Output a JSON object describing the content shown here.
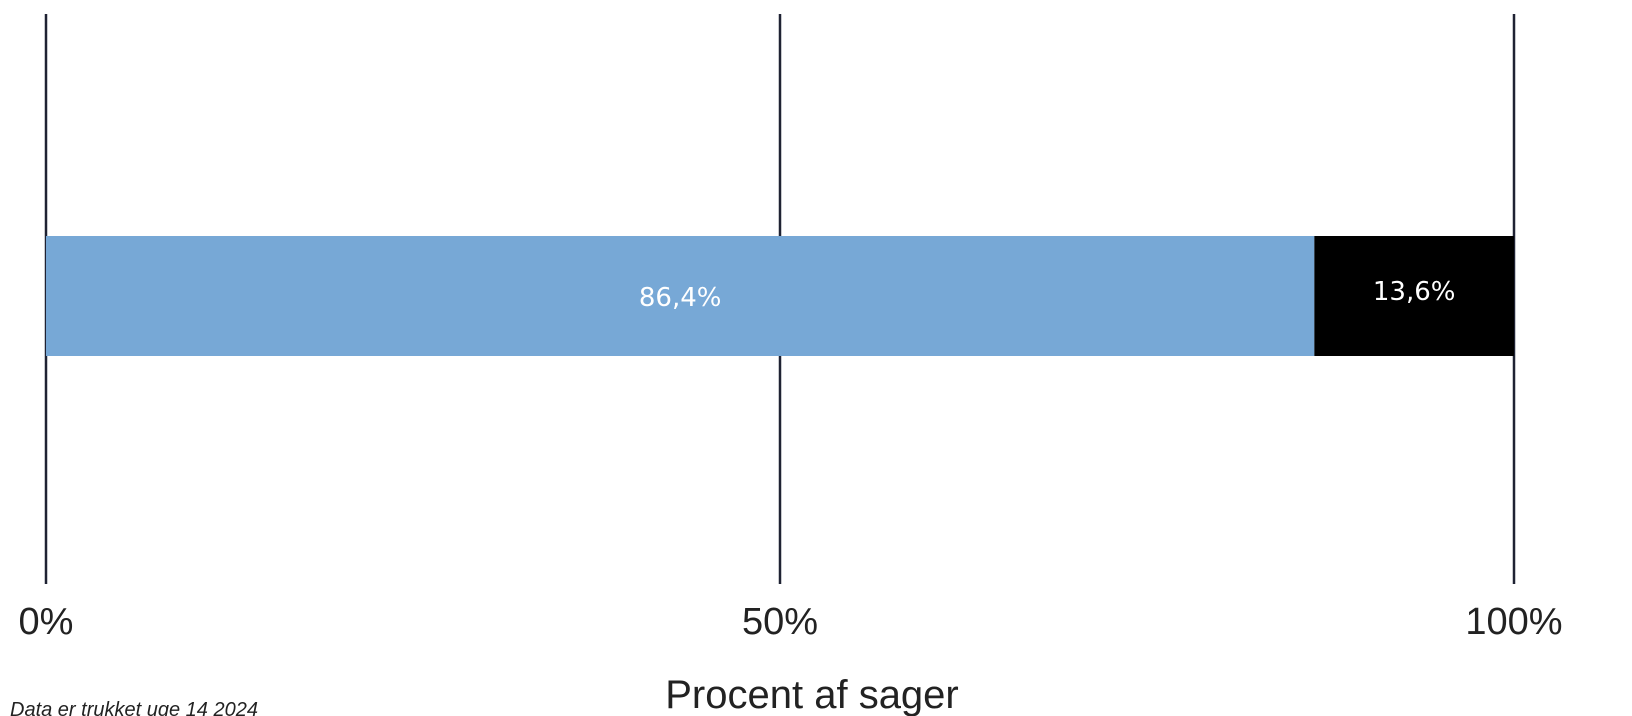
{
  "chart_data": {
    "type": "bar",
    "orientation": "horizontal",
    "stacked": true,
    "xlabel": "Procent af sager",
    "xlim": [
      0,
      100
    ],
    "x_ticks": [
      {
        "value": 0,
        "label": "0%"
      },
      {
        "value": 50,
        "label": "50%"
      },
      {
        "value": 100,
        "label": "100%"
      }
    ],
    "grid": true,
    "series": [
      {
        "value": 86.4,
        "label": "86,4%",
        "color": "#77a8d6"
      },
      {
        "value": 13.6,
        "label": "13,6%",
        "color": "#000000"
      }
    ]
  },
  "footnote": "Data er trukket uge 14 2024"
}
